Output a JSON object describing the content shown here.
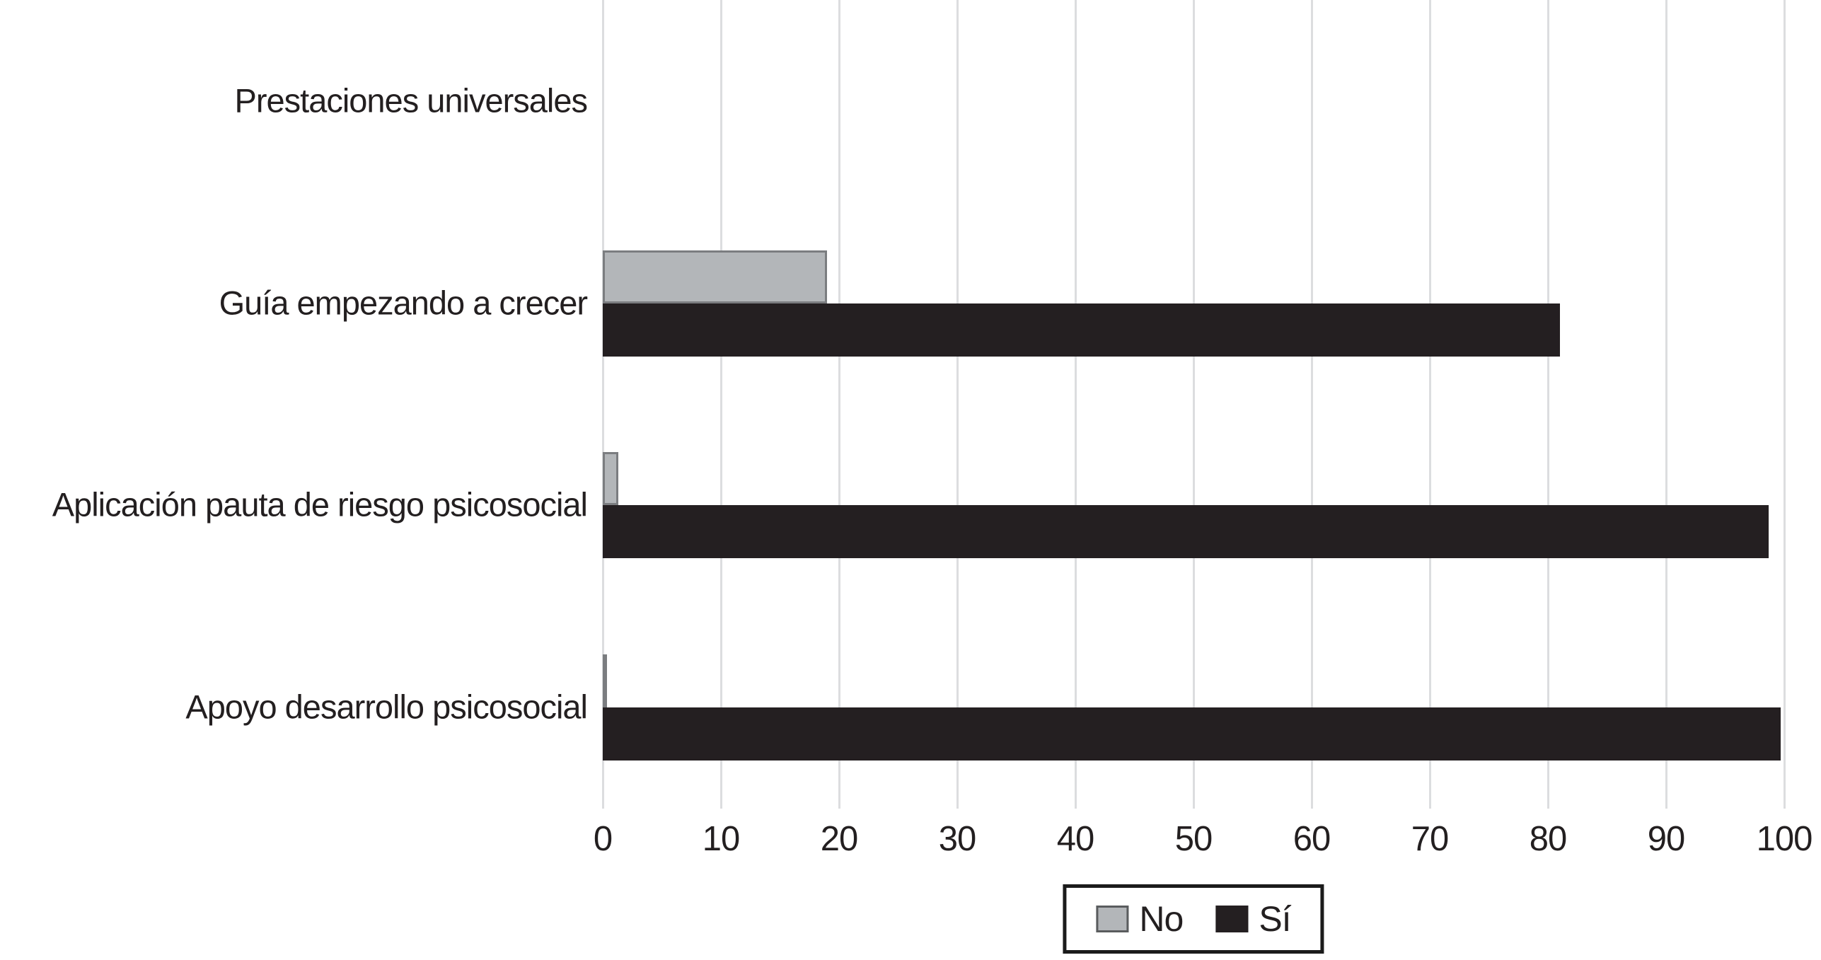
{
  "chart_data": {
    "type": "bar",
    "orientation": "horizontal",
    "title": "",
    "xlabel": "",
    "ylabel": "",
    "xlim": [
      0,
      100
    ],
    "xticks": [
      0,
      10,
      20,
      30,
      40,
      50,
      60,
      70,
      80,
      90,
      100
    ],
    "grid": "vertical",
    "gridline_color": "#dcdddf",
    "background_color": "#ffffff",
    "text_color": "#231f20",
    "categories": [
      "Prestaciones universales",
      "Guía empezando a crecer",
      "Aplicación pauta de riesgo psicosocial",
      "Apoyo desarrollo psicosocial"
    ],
    "series": [
      {
        "name": "No",
        "color": "#b3b6b9",
        "border_color": "#7b7d80",
        "values": [
          0,
          19,
          1.3,
          0.3
        ]
      },
      {
        "name": "Sí",
        "color": "#241f21",
        "border_color": "#241f21",
        "values": [
          0,
          81,
          98.7,
          99.7
        ]
      }
    ],
    "legend": {
      "position": "bottom-center",
      "entries": [
        "No",
        "Sí"
      ]
    }
  }
}
